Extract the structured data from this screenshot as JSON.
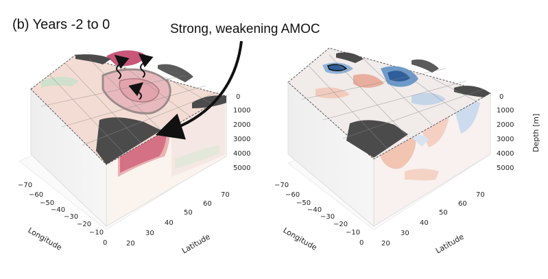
{
  "panel_label": "(b) Years -2 to 0",
  "annotation": "Strong, weakening AMOC",
  "axes": {
    "longitude_label": "Longitude",
    "latitude_label": "Latitude",
    "depth_label": "Depth [m]",
    "longitude_ticks": [
      "−70",
      "−60",
      "−50",
      "−40",
      "−30",
      "−20",
      "−10",
      "0"
    ],
    "latitude_ticks": [
      "20",
      "30",
      "40",
      "50",
      "60",
      "70"
    ],
    "depth_ticks": [
      "0",
      "1000",
      "2000",
      "3000",
      "4000",
      "5000"
    ]
  },
  "colors": {
    "positive_anomaly": "#c0394f",
    "negative_anomaly": "#2f6fb0",
    "land": "#4a4a4a",
    "arrow": "#111111"
  },
  "panels": [
    {
      "name": "left",
      "description_icon": "ocean-box-positive"
    },
    {
      "name": "right",
      "description_icon": "ocean-box-mixed"
    }
  ]
}
